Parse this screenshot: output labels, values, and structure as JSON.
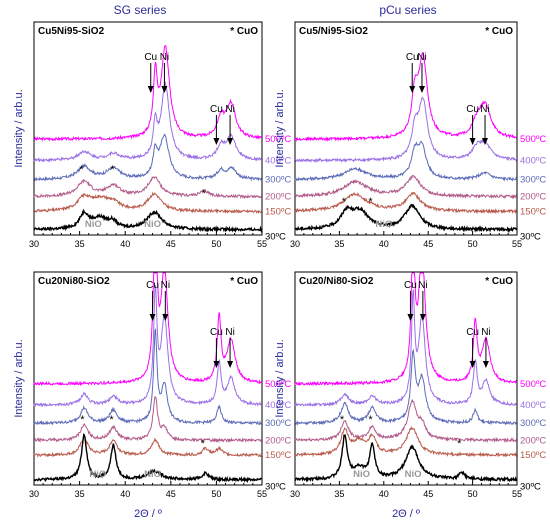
{
  "figure": {
    "header_left": "SG series",
    "header_right": "pCu series",
    "ylabel": "Intensity / arb.u.",
    "xlabel": "2Θ / º",
    "colors": {
      "500°C": "#ff00ff",
      "400°C": "#9a70e6",
      "300°C": "#5c6bb8",
      "200°C": "#b25a8a",
      "150°C": "#b85a4a",
      "30°C": "#000000"
    }
  },
  "chart_data": [
    {
      "type": "line",
      "title": "Cu5Ni95-SiO2",
      "legend_note": "* CuO",
      "xlim": [
        30,
        55
      ],
      "xticks": [
        "30",
        "35",
        "40",
        "45",
        "50",
        "55"
      ],
      "xlabel": "",
      "ylabel": "Intensity / arb.u.",
      "series": [
        {
          "name": "500ºC",
          "offset": 0.9,
          "peaks": [
            [
              43.3,
              0.55,
              0.25
            ],
            [
              44.4,
              0.85,
              0.55
            ],
            [
              50.5,
              0.18,
              0.5
            ],
            [
              51.6,
              0.32,
              0.6
            ]
          ]
        },
        {
          "name": "400ºC",
          "offset": 0.7,
          "peaks": [
            [
              43.3,
              0.3,
              0.25
            ],
            [
              44.4,
              0.7,
              0.55
            ],
            [
              50.5,
              0.12,
              0.5
            ],
            [
              51.6,
              0.22,
              0.6
            ],
            [
              35.5,
              0.08,
              0.8
            ],
            [
              38.7,
              0.06,
              0.8
            ]
          ]
        },
        {
          "name": "300ºC",
          "offset": 0.52,
          "peaks": [
            [
              35.5,
              0.12,
              0.9
            ],
            [
              38.7,
              0.1,
              0.9
            ],
            [
              43.3,
              0.22,
              0.3
            ],
            [
              44.3,
              0.4,
              0.6
            ],
            [
              50.5,
              0.08,
              0.5
            ],
            [
              51.7,
              0.1,
              0.6
            ]
          ]
        },
        {
          "name": "200ºC",
          "offset": 0.36,
          "peaks": [
            [
              35.5,
              0.14,
              0.9
            ],
            [
              38.7,
              0.1,
              0.9
            ],
            [
              43.2,
              0.18,
              0.8
            ],
            [
              48.7,
              0.05,
              0.6
            ]
          ]
        },
        {
          "name": "150ºC",
          "offset": 0.22,
          "peaks": [
            [
              35.5,
              0.12,
              0.9
            ],
            [
              37.3,
              0.1,
              1.2
            ],
            [
              38.7,
              0.06,
              0.9
            ],
            [
              43.2,
              0.16,
              0.9
            ]
          ]
        },
        {
          "name": "30ºC",
          "offset": 0.05,
          "peaks": [
            [
              35.5,
              0.14,
              0.6
            ],
            [
              37.2,
              0.1,
              1.0
            ],
            [
              38.6,
              0.06,
              0.6
            ],
            [
              43.2,
              0.16,
              1.0
            ]
          ]
        }
      ],
      "annotations": [
        {
          "text": "Cu",
          "x": 42.8
        },
        {
          "text": "Ni",
          "x": 44.3
        },
        {
          "text": "Cu",
          "x": 50.0
        },
        {
          "text": "Ni",
          "x": 51.5
        },
        {
          "text": "NiO",
          "x": 36.5
        },
        {
          "text": "NiO",
          "x": 43.0
        },
        {
          "text": "*",
          "x": 35.2
        },
        {
          "text": "*",
          "x": 38.6
        },
        {
          "text": "*",
          "x": 48.6
        }
      ]
    },
    {
      "type": "line",
      "title": "Cu5/Ni95-SiO2",
      "legend_note": "* CuO",
      "xlim": [
        30,
        55
      ],
      "xticks": [
        "30",
        "35",
        "40",
        "45",
        "50",
        "55"
      ],
      "xlabel": "",
      "ylabel": "Intensity / arb.u.",
      "series": [
        {
          "name": "500ºC",
          "offset": 0.9,
          "peaks": [
            [
              43.5,
              0.35,
              0.4
            ],
            [
              44.4,
              0.75,
              0.6
            ],
            [
              50.5,
              0.12,
              0.6
            ],
            [
              51.4,
              0.3,
              0.8
            ]
          ]
        },
        {
          "name": "400ºC",
          "offset": 0.7,
          "peaks": [
            [
              43.5,
              0.25,
              0.4
            ],
            [
              44.4,
              0.55,
              0.6
            ],
            [
              50.5,
              0.1,
              0.6
            ],
            [
              51.4,
              0.14,
              0.8
            ]
          ]
        },
        {
          "name": "300ºC",
          "offset": 0.52,
          "peaks": [
            [
              36.8,
              0.1,
              1.5
            ],
            [
              43.5,
              0.22,
              0.5
            ],
            [
              44.3,
              0.28,
              0.6
            ],
            [
              51.4,
              0.06,
              0.8
            ]
          ]
        },
        {
          "name": "200ºC",
          "offset": 0.36,
          "peaks": [
            [
              36.8,
              0.14,
              1.6
            ],
            [
              43.3,
              0.18,
              1.0
            ]
          ]
        },
        {
          "name": "150ºC",
          "offset": 0.22,
          "peaks": [
            [
              36.8,
              0.16,
              1.6
            ],
            [
              43.3,
              0.16,
              1.0
            ]
          ]
        },
        {
          "name": "30ºC",
          "offset": 0.05,
          "peaks": [
            [
              35.8,
              0.14,
              0.8
            ],
            [
              37.3,
              0.16,
              1.2
            ],
            [
              43.2,
              0.22,
              1.0
            ]
          ]
        }
      ],
      "annotations": [
        {
          "text": "Cu",
          "x": 43.2
        },
        {
          "text": "Ni",
          "x": 44.3
        },
        {
          "text": "Cu",
          "x": 50.0
        },
        {
          "text": "Ni",
          "x": 51.4
        },
        {
          "text": "NiO",
          "x": 40.0
        },
        {
          "text": "*",
          "x": 35.5
        },
        {
          "text": "*",
          "x": 38.5
        }
      ]
    },
    {
      "type": "line",
      "title": "Cu20Ni80-SiO2",
      "legend_note": "* CuO",
      "xlim": [
        30,
        55
      ],
      "xticks": [
        "30",
        "35",
        "40",
        "45",
        "50",
        "55"
      ],
      "xlabel": "2Θ / º",
      "ylabel": "Intensity / arb.u.",
      "series": [
        {
          "name": "500ºC",
          "offset": 0.95,
          "peaks": [
            [
              43.3,
              1.6,
              0.22
            ],
            [
              44.3,
              1.05,
              0.45
            ],
            [
              50.3,
              0.6,
              0.25
            ],
            [
              51.6,
              0.4,
              0.55
            ]
          ]
        },
        {
          "name": "400ºC",
          "offset": 0.75,
          "peaks": [
            [
              43.3,
              1.0,
              0.22
            ],
            [
              44.3,
              0.8,
              0.45
            ],
            [
              50.3,
              0.38,
              0.25
            ],
            [
              51.6,
              0.25,
              0.5
            ],
            [
              35.5,
              0.1,
              0.5
            ],
            [
              38.7,
              0.08,
              0.5
            ]
          ]
        },
        {
          "name": "300ºC",
          "offset": 0.58,
          "peaks": [
            [
              35.5,
              0.14,
              0.5
            ],
            [
              38.7,
              0.12,
              0.5
            ],
            [
              43.3,
              0.85,
              0.22
            ],
            [
              44.3,
              0.35,
              0.4
            ],
            [
              50.3,
              0.15,
              0.3
            ]
          ]
        },
        {
          "name": "200ºC",
          "offset": 0.42,
          "peaks": [
            [
              35.5,
              0.14,
              0.5
            ],
            [
              38.7,
              0.12,
              0.5
            ],
            [
              43.3,
              0.4,
              0.3
            ],
            [
              44.3,
              0.1,
              0.4
            ]
          ]
        },
        {
          "name": "150ºC",
          "offset": 0.28,
          "peaks": [
            [
              35.5,
              0.16,
              0.5
            ],
            [
              38.7,
              0.14,
              0.5
            ],
            [
              43.3,
              0.14,
              0.5
            ],
            [
              48.8,
              0.06,
              0.4
            ],
            [
              50.3,
              0.06,
              0.4
            ]
          ]
        },
        {
          "name": "30ºC",
          "offset": 0.05,
          "peaks": [
            [
              35.5,
              0.42,
              0.35
            ],
            [
              38.7,
              0.32,
              0.35
            ],
            [
              43.2,
              0.08,
              0.9
            ],
            [
              48.8,
              0.06,
              0.4
            ]
          ]
        }
      ],
      "annotations": [
        {
          "text": "Cu",
          "x": 43.0
        },
        {
          "text": "Ni",
          "x": 44.4
        },
        {
          "text": "Cu",
          "x": 50.0
        },
        {
          "text": "Ni",
          "x": 51.5
        },
        {
          "text": "NiO",
          "x": 37.0
        },
        {
          "text": "NiO",
          "x": 43.0
        },
        {
          "text": "*",
          "x": 35.3
        },
        {
          "text": "*",
          "x": 38.5
        },
        {
          "text": "*",
          "x": 48.5
        }
      ]
    },
    {
      "type": "line",
      "title": "Cu20/Ni80-SiO2",
      "legend_note": "* CuO",
      "xlim": [
        30,
        55
      ],
      "xticks": [
        "30",
        "35",
        "40",
        "45",
        "50",
        "55"
      ],
      "xlabel": "2Θ / º",
      "ylabel": "Intensity / arb.u.",
      "series": [
        {
          "name": "500ºC",
          "offset": 0.95,
          "peaks": [
            [
              43.3,
              1.3,
              0.22
            ],
            [
              44.3,
              1.2,
              0.45
            ],
            [
              50.3,
              0.55,
              0.25
            ],
            [
              51.5,
              0.4,
              0.55
            ]
          ]
        },
        {
          "name": "400ºC",
          "offset": 0.75,
          "peaks": [
            [
              43.3,
              0.95,
              0.22
            ],
            [
              44.3,
              0.8,
              0.45
            ],
            [
              50.3,
              0.4,
              0.25
            ],
            [
              51.5,
              0.22,
              0.5
            ],
            [
              35.6,
              0.1,
              0.5
            ],
            [
              38.7,
              0.08,
              0.5
            ]
          ]
        },
        {
          "name": "300ºC",
          "offset": 0.58,
          "peaks": [
            [
              35.6,
              0.18,
              0.5
            ],
            [
              38.7,
              0.14,
              0.5
            ],
            [
              43.3,
              0.6,
              0.3
            ],
            [
              44.3,
              0.4,
              0.5
            ],
            [
              50.3,
              0.12,
              0.3
            ]
          ]
        },
        {
          "name": "200ºC",
          "offset": 0.42,
          "peaks": [
            [
              35.6,
              0.18,
              0.5
            ],
            [
              38.7,
              0.12,
              0.5
            ],
            [
              43.2,
              0.35,
              0.6
            ],
            [
              44.3,
              0.12,
              0.5
            ]
          ]
        },
        {
          "name": "150ºC",
          "offset": 0.28,
          "peaks": [
            [
              35.6,
              0.22,
              0.5
            ],
            [
              37.2,
              0.12,
              0.8
            ],
            [
              38.7,
              0.16,
              0.5
            ],
            [
              43.2,
              0.25,
              0.8
            ]
          ]
        },
        {
          "name": "30ºC",
          "offset": 0.05,
          "peaks": [
            [
              35.6,
              0.4,
              0.35
            ],
            [
              37.2,
              0.1,
              0.8
            ],
            [
              38.7,
              0.3,
              0.35
            ],
            [
              43.2,
              0.3,
              0.9
            ],
            [
              48.8,
              0.06,
              0.4
            ]
          ]
        }
      ],
      "annotations": [
        {
          "text": "Cu",
          "x": 43.0
        },
        {
          "text": "Ni",
          "x": 44.4
        },
        {
          "text": "Cu",
          "x": 50.0
        },
        {
          "text": "Ni",
          "x": 51.5
        },
        {
          "text": "NiO",
          "x": 37.5
        },
        {
          "text": "NiO",
          "x": 43.3
        },
        {
          "text": "*",
          "x": 35.3
        },
        {
          "text": "*",
          "x": 38.5
        },
        {
          "text": "*",
          "x": 48.5
        }
      ]
    }
  ]
}
